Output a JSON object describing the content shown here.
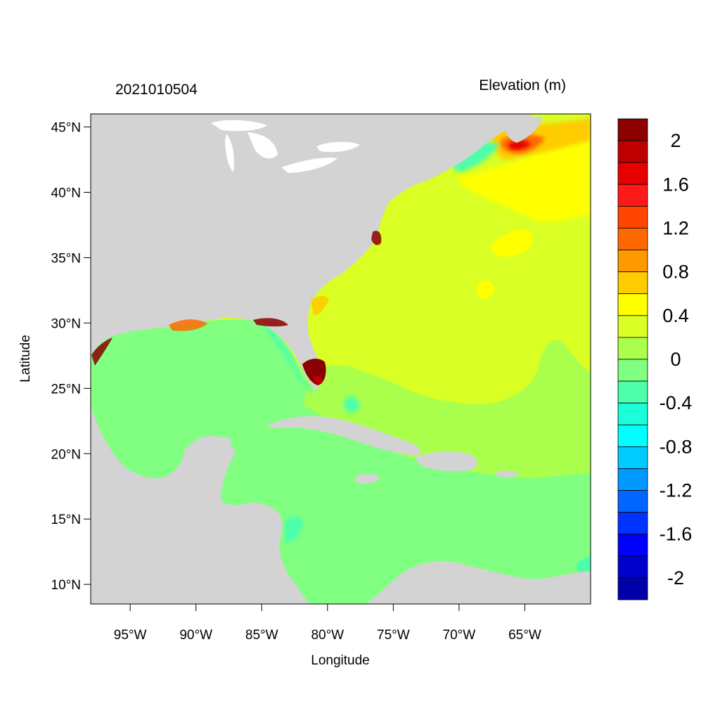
{
  "title_left": "2021010504",
  "title_right": "Elevation (m)",
  "x_axis": {
    "label": "Longitude",
    "range": [
      -98,
      -60
    ],
    "ticks": [
      {
        "value": -95,
        "label": "95°W"
      },
      {
        "value": -90,
        "label": "90°W"
      },
      {
        "value": -85,
        "label": "85°W"
      },
      {
        "value": -80,
        "label": "80°W"
      },
      {
        "value": -75,
        "label": "75°W"
      },
      {
        "value": -70,
        "label": "70°W"
      },
      {
        "value": -65,
        "label": "65°W"
      }
    ]
  },
  "y_axis": {
    "label": "Latitude",
    "range": [
      8.5,
      46
    ],
    "ticks": [
      {
        "value": 45,
        "label": "45°N"
      },
      {
        "value": 40,
        "label": "40°N"
      },
      {
        "value": 35,
        "label": "35°N"
      },
      {
        "value": 30,
        "label": "30°N"
      },
      {
        "value": 25,
        "label": "25°N"
      },
      {
        "value": 20,
        "label": "20°N"
      },
      {
        "value": 15,
        "label": "15°N"
      },
      {
        "value": 10,
        "label": "10°N"
      }
    ]
  },
  "colorbar": {
    "colors_top_to_bottom": [
      "#8b0000",
      "#be0000",
      "#e60000",
      "#ff1a1a",
      "#ff4500",
      "#ff6a00",
      "#ff9900",
      "#ffcc00",
      "#ffff00",
      "#d9ff24",
      "#aaff4d",
      "#80ff80",
      "#4dffaa",
      "#1affd9",
      "#00ffff",
      "#00ccff",
      "#0099ff",
      "#0066ff",
      "#0033ff",
      "#0000ff",
      "#0000cc",
      "#0000aa"
    ],
    "labels": [
      "2",
      "1.6",
      "1.2",
      "0.8",
      "0.4",
      "0",
      "-0.4",
      "-0.8",
      "-1.2",
      "-1.6",
      "-2"
    ]
  },
  "colors": {
    "land": "#d3d3d3",
    "lakes": "#ffffff",
    "surge_dark": "#8b0000"
  }
}
